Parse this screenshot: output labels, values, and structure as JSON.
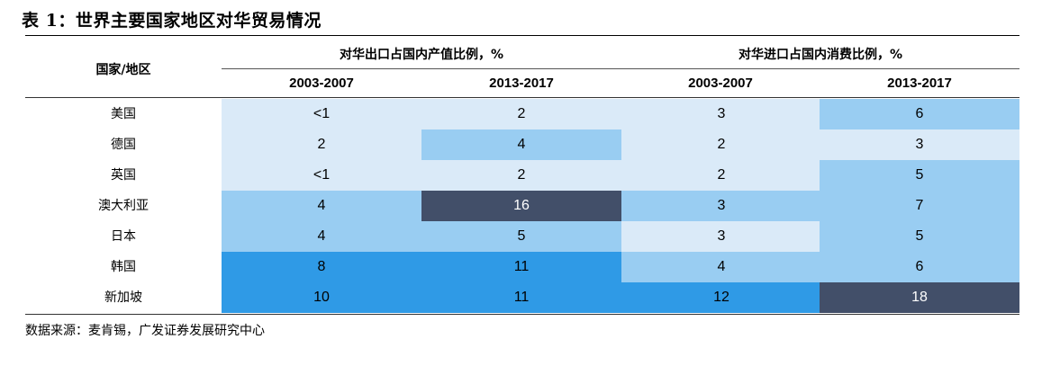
{
  "title": "表 1：世界主要国家地区对华贸易情况",
  "header": {
    "country_label": "国家/地区",
    "group_export": "对华出口占国内产值比例，%",
    "group_import": "对华进口占国内消费比例，%",
    "years": [
      "2003-2007",
      "2013-2017",
      "2003-2007",
      "2013-2017"
    ]
  },
  "colors": {
    "level1": "#daeaf8",
    "level2": "#99cdf2",
    "level3": "#2f9ae6",
    "level4": "#424f69",
    "text_dark": "#000000",
    "text_light": "#ffffff"
  },
  "rows": [
    {
      "country": "美国",
      "values": [
        "<1",
        "2",
        "3",
        "6"
      ],
      "shades": [
        "level1",
        "level1",
        "level1",
        "level2"
      ]
    },
    {
      "country": "德国",
      "values": [
        "2",
        "4",
        "2",
        "3"
      ],
      "shades": [
        "level1",
        "level2",
        "level1",
        "level1"
      ]
    },
    {
      "country": "英国",
      "values": [
        "<1",
        "2",
        "2",
        "5"
      ],
      "shades": [
        "level1",
        "level1",
        "level1",
        "level2"
      ]
    },
    {
      "country": "澳大利亚",
      "values": [
        "4",
        "16",
        "3",
        "7"
      ],
      "shades": [
        "level2",
        "level4",
        "level2",
        "level2"
      ]
    },
    {
      "country": "日本",
      "values": [
        "4",
        "5",
        "3",
        "5"
      ],
      "shades": [
        "level2",
        "level2",
        "level1",
        "level2"
      ]
    },
    {
      "country": "韩国",
      "values": [
        "8",
        "11",
        "4",
        "6"
      ],
      "shades": [
        "level3",
        "level3",
        "level2",
        "level2"
      ]
    },
    {
      "country": "新加坡",
      "values": [
        "10",
        "11",
        "12",
        "18"
      ],
      "shades": [
        "level3",
        "level3",
        "level3",
        "level4"
      ]
    }
  ],
  "source": "数据来源：麦肯锡，广发证券发展研究中心"
}
